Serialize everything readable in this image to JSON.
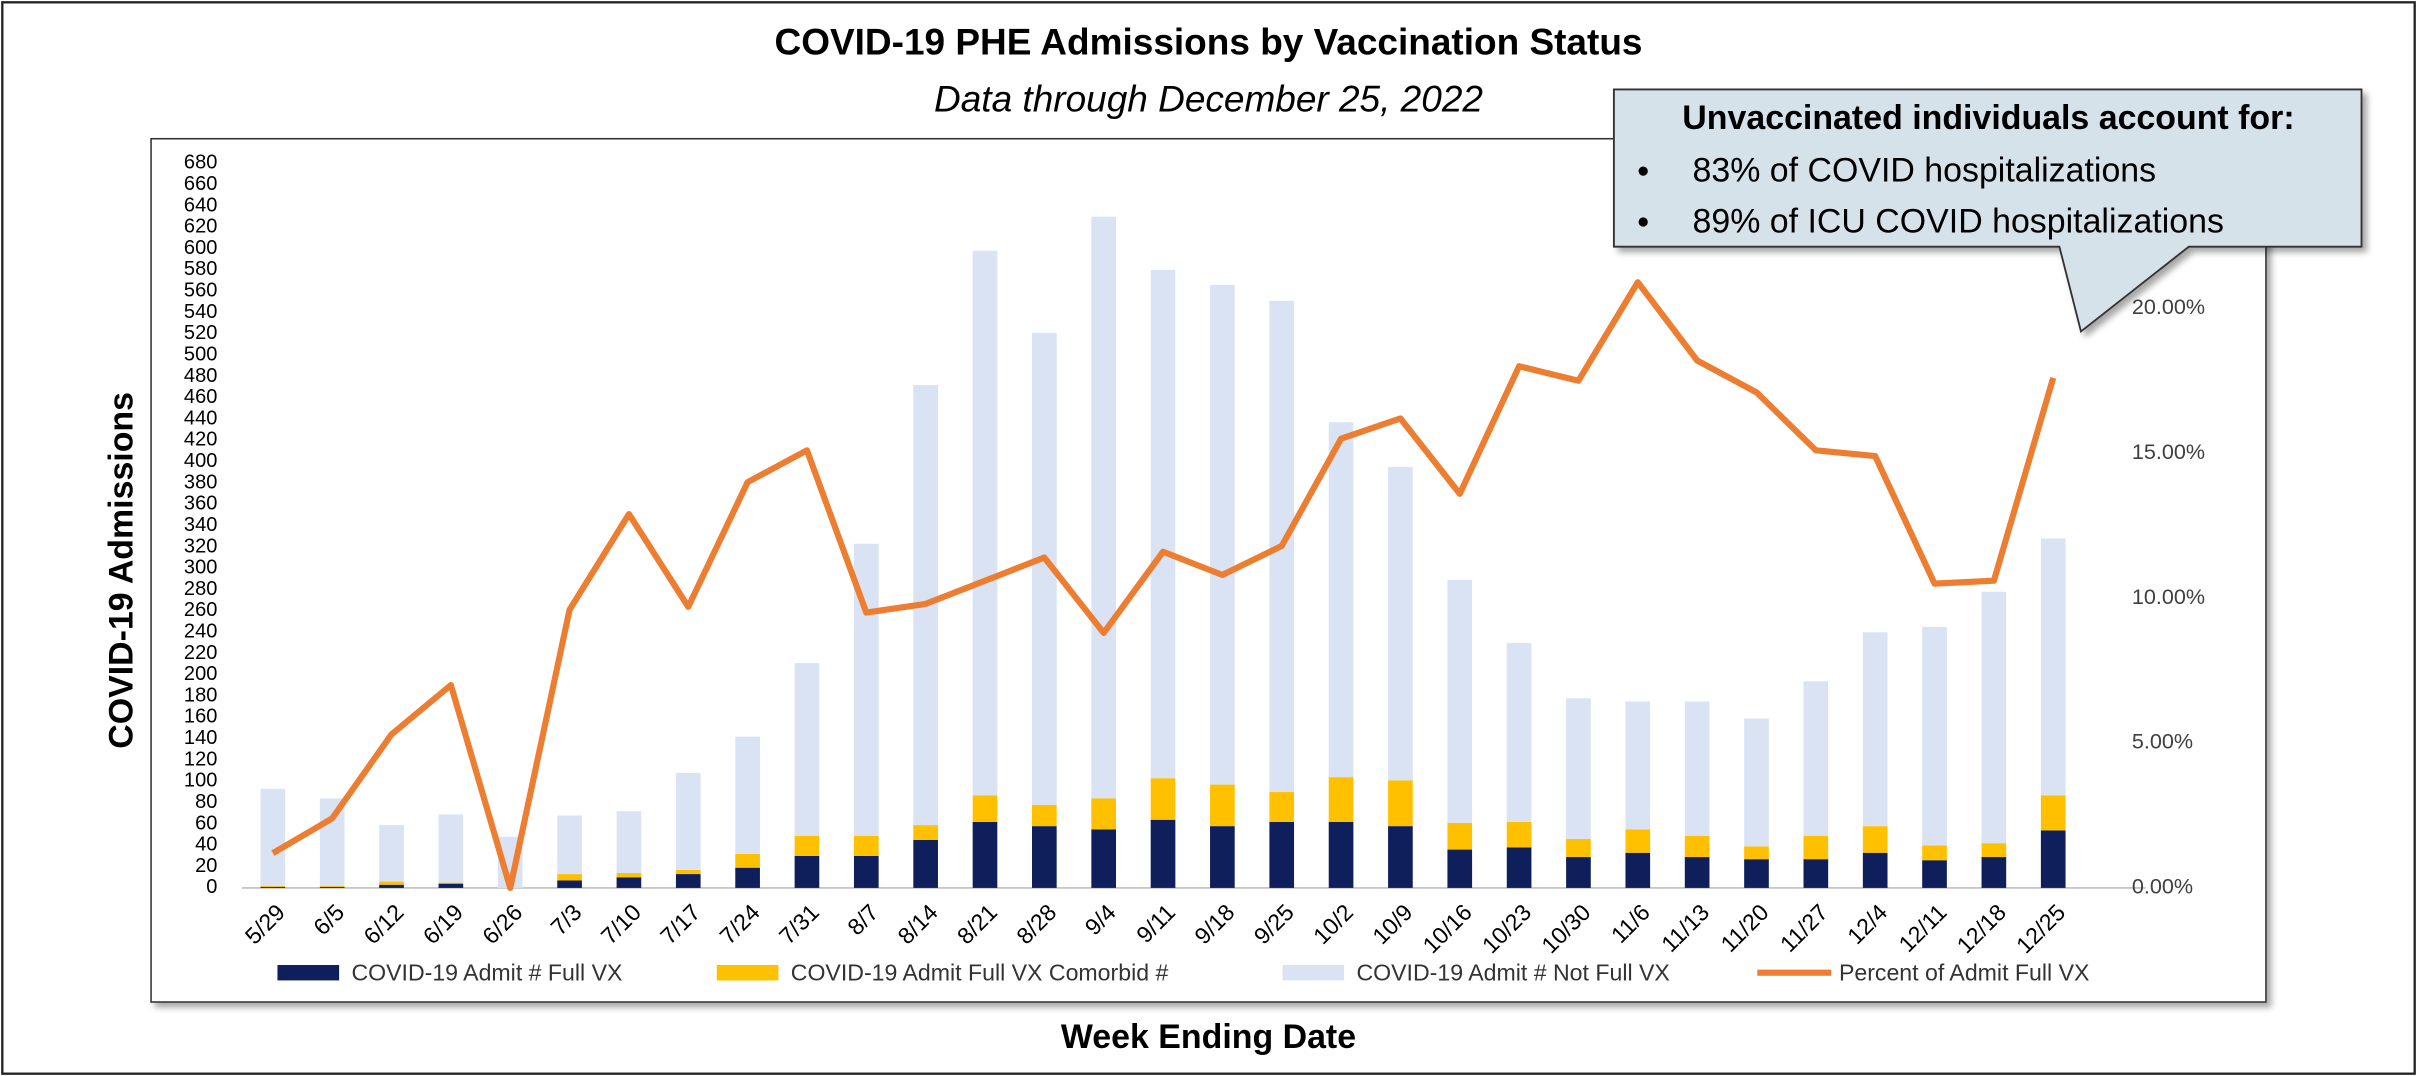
{
  "chart_data": {
    "type": "bar",
    "stacked": true,
    "title": "COVID-19 PHE Admissions by Vaccination Status",
    "subtitle": "Data through December 25, 2022",
    "y_label": "COVID-19 Admissions",
    "x_label": "Week Ending Date",
    "categories": [
      "5/29",
      "6/5",
      "6/12",
      "6/19",
      "6/26",
      "7/3",
      "7/10",
      "7/17",
      "7/24",
      "7/31",
      "8/7",
      "8/14",
      "8/21",
      "8/28",
      "9/4",
      "9/11",
      "9/18",
      "9/25",
      "10/2",
      "10/9",
      "10/16",
      "10/23",
      "10/30",
      "11/6",
      "11/13",
      "11/20",
      "11/27",
      "12/4",
      "12/11",
      "12/18",
      "12/25"
    ],
    "series": [
      {
        "name": "COVID-19 Admit # Full VX",
        "type": "bar",
        "color": "#0e1f5b",
        "values": [
          1,
          1,
          3,
          4,
          0,
          7,
          10,
          13,
          19,
          30,
          30,
          45,
          62,
          58,
          55,
          64,
          58,
          62,
          62,
          58,
          36,
          38,
          29,
          33,
          29,
          27,
          27,
          33,
          26,
          29,
          54
        ]
      },
      {
        "name": "COVID-19 Admit Full VX Comorbid #",
        "type": "bar",
        "color": "#ffc000",
        "values": [
          1,
          1,
          3,
          1,
          0,
          6,
          4,
          4,
          13,
          19,
          19,
          14,
          25,
          20,
          29,
          39,
          39,
          28,
          42,
          43,
          25,
          24,
          17,
          22,
          20,
          12,
          22,
          25,
          14,
          13,
          33
        ]
      },
      {
        "name": "COVID-19 Admit # Not Full VX",
        "type": "bar",
        "color": "#dae3f3",
        "values": [
          91,
          82,
          53,
          64,
          48,
          55,
          58,
          91,
          110,
          162,
          274,
          413,
          511,
          443,
          546,
          477,
          469,
          461,
          333,
          294,
          228,
          168,
          132,
          120,
          126,
          120,
          145,
          182,
          205,
          236,
          241
        ]
      },
      {
        "name": "Percent of Admit Full VX",
        "type": "line",
        "axis": "y2",
        "color": "#ed7d31",
        "values": [
          1.2,
          2.4,
          5.3,
          7.0,
          0,
          9.6,
          12.9,
          9.7,
          14.0,
          15.1,
          9.5,
          9.8,
          10.6,
          11.4,
          8.8,
          11.6,
          10.8,
          11.8,
          15.5,
          16.2,
          13.6,
          18.0,
          17.5,
          20.9,
          18.2,
          17.1,
          15.1,
          14.9,
          10.5,
          10.6,
          17.6
        ]
      }
    ],
    "ylim": [
      0,
      680
    ],
    "yticks": [
      0,
      20,
      40,
      60,
      80,
      100,
      120,
      140,
      160,
      180,
      200,
      220,
      240,
      260,
      280,
      300,
      320,
      340,
      360,
      380,
      400,
      420,
      440,
      460,
      480,
      500,
      520,
      540,
      560,
      580,
      600,
      620,
      640,
      660,
      680
    ],
    "y2lim": [
      0,
      25
    ],
    "y2ticks": [
      {
        "value": 0,
        "label": "0.00%"
      },
      {
        "value": 5,
        "label": "5.00%"
      },
      {
        "value": 10,
        "label": "10.00%"
      },
      {
        "value": 15,
        "label": "15.00%"
      },
      {
        "value": 20,
        "label": "20.00%"
      }
    ],
    "grid": false,
    "legend": "bottom",
    "annotation": {
      "title": "Unvaccinated individuals account for:",
      "items": [
        "83% of COVID hospitalizations",
        "89% of ICU COVID hospitalizations"
      ]
    }
  }
}
